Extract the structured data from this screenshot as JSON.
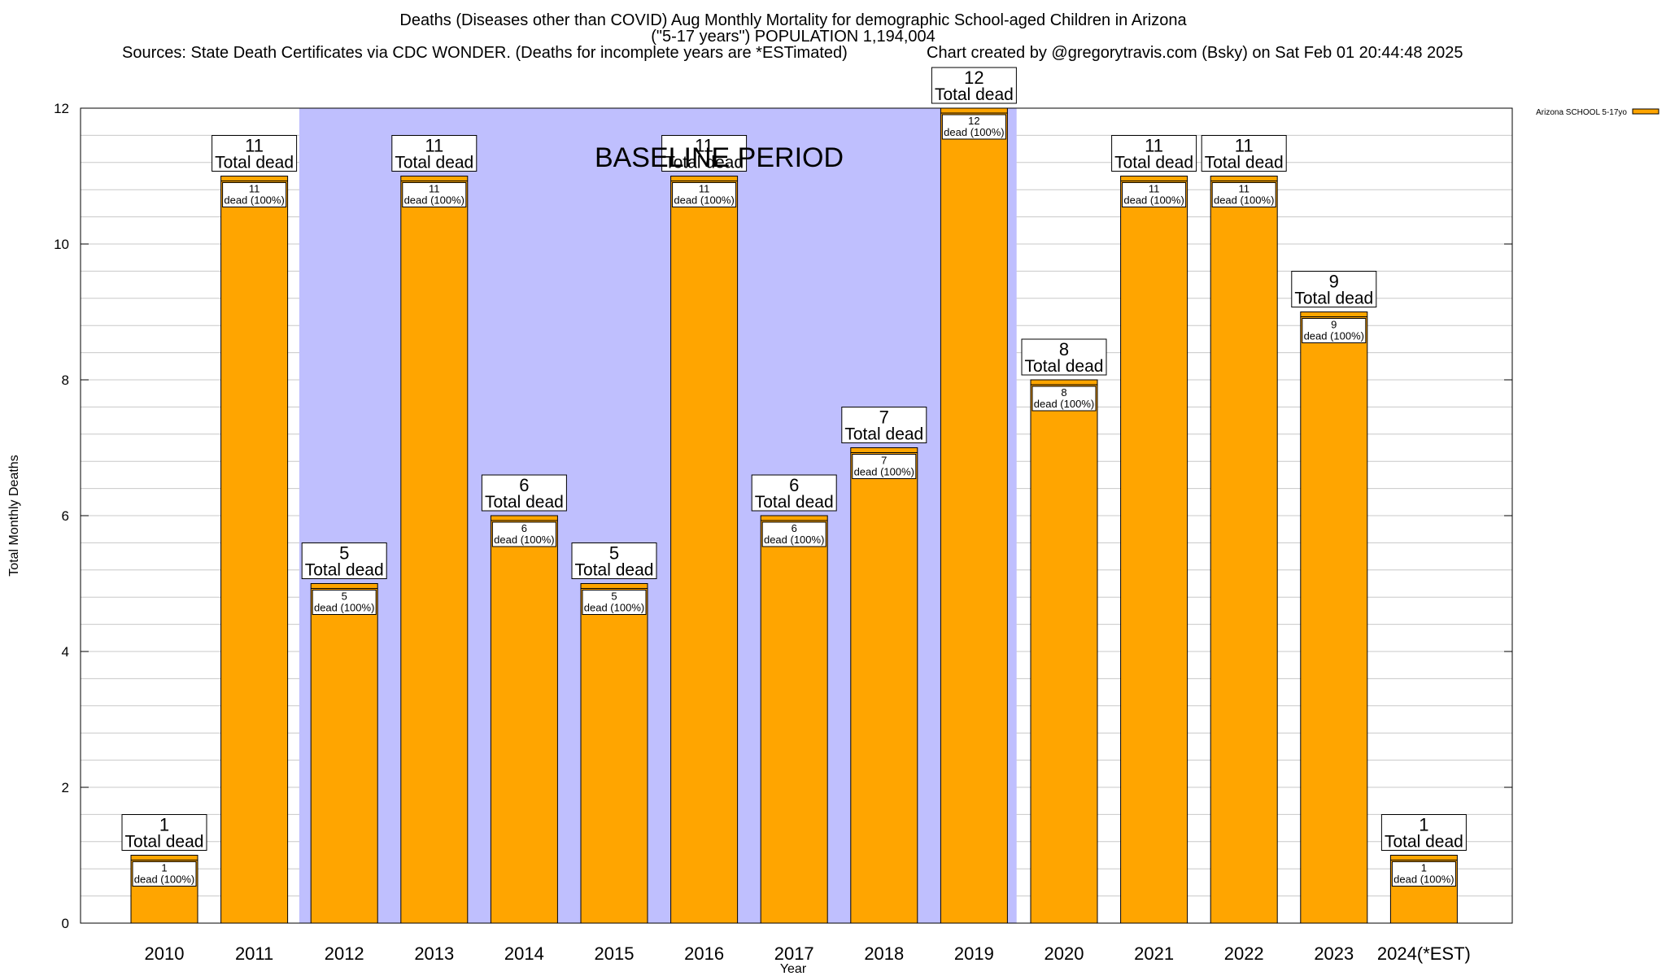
{
  "title": {
    "line1": "Deaths (Diseases other than COVID) Aug Monthly Mortality for demographic School-aged Children in Arizona",
    "line2": "(\"5-17 years\") POPULATION 1,194,004",
    "sources": "Sources: State Death Certificates via CDC WONDER. (Deaths for incomplete years are *ESTimated)",
    "credit": "Chart created by @gregorytravis.com (Bsky) on Sat Feb 01 20:44:48 2025"
  },
  "colors": {
    "bar": "#ffa500",
    "baseline_band": "#bfbffe",
    "grid": "#c8c8c8"
  },
  "chart_data": {
    "type": "bar",
    "categories": [
      "2010",
      "2011",
      "2012",
      "2013",
      "2014",
      "2015",
      "2016",
      "2017",
      "2018",
      "2019",
      "2020",
      "2021",
      "2022",
      "2023",
      "2024(*EST)"
    ],
    "series": [
      {
        "name": "Arizona SCHOOL 5-17yo",
        "values": [
          1,
          11,
          5,
          11,
          6,
          5,
          11,
          6,
          7,
          12,
          8,
          11,
          11,
          9,
          1
        ]
      }
    ],
    "bar_labels_top": [
      "1",
      "11",
      "5",
      "11",
      "6",
      "5",
      "11",
      "6",
      "7",
      "12",
      "8",
      "11",
      "11",
      "9",
      "1"
    ],
    "bar_labels_total_text": "Total dead",
    "bar_labels_inner_text": "dead (100%)",
    "title": "Deaths (Diseases other than COVID) Aug Monthly Mortality for demographic School-aged Children in Arizona",
    "xlabel": "Year",
    "ylabel": "Total Monthly Deaths",
    "ylim": [
      0,
      12
    ],
    "yticks": [
      0,
      2,
      4,
      6,
      8,
      10,
      12
    ],
    "grid": true,
    "legend_position": "top-right",
    "annotation": {
      "text": "BASELINE PERIOD",
      "range_start": "2012",
      "range_end": "2019"
    }
  }
}
